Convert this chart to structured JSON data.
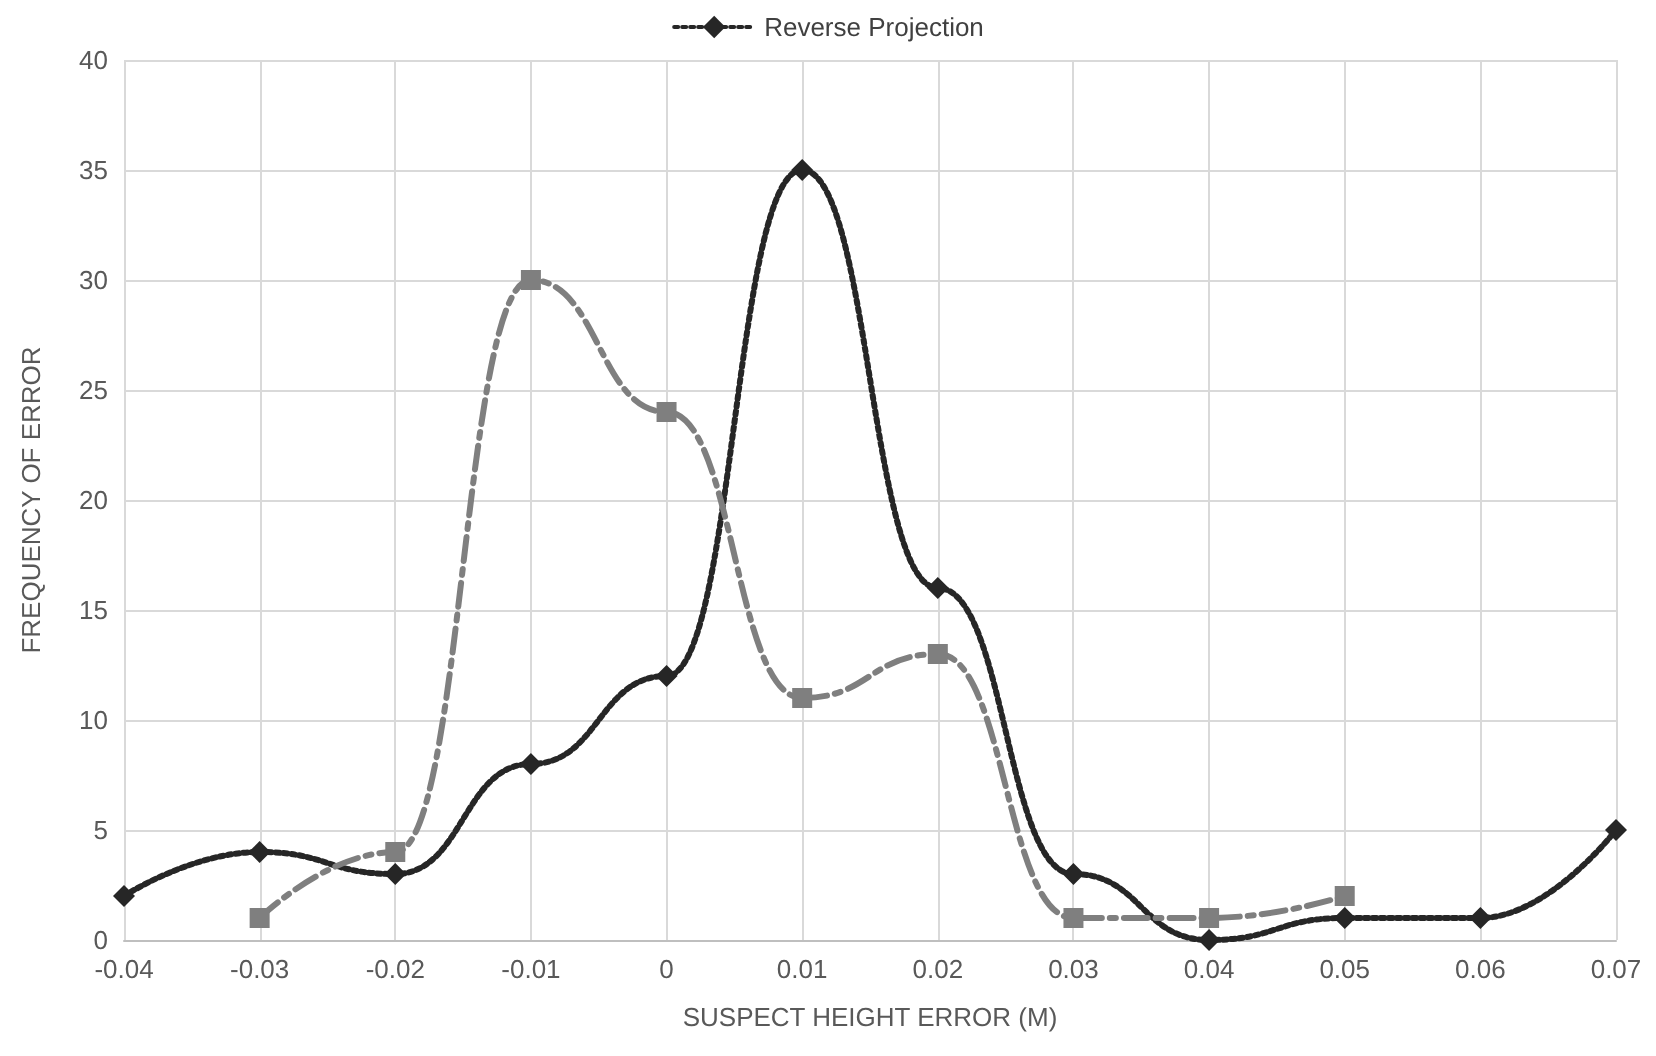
{
  "chart_data": {
    "type": "line",
    "xlabel": "SUSPECT HEIGHT ERROR (M)",
    "ylabel": "FREQUENCY OF ERROR",
    "series": [
      {
        "name": "Reverse Projection",
        "color": "#262626",
        "marker": "diamond",
        "line_style": "dotted",
        "x": [
          -0.04,
          -0.03,
          -0.02,
          -0.01,
          0,
          0.01,
          0.02,
          0.03,
          0.04,
          0.05,
          0.06,
          0.07
        ],
        "values": [
          2,
          4,
          3,
          8,
          12,
          35,
          16,
          3,
          0,
          1,
          1,
          5
        ]
      },
      {
        "color": "#7f7f7f",
        "marker": "square",
        "line_style": "dashed",
        "x": [
          -0.03,
          -0.02,
          -0.01,
          0,
          0.01,
          0.02,
          0.03,
          0.04,
          0.05
        ],
        "values": [
          1,
          4,
          30,
          24,
          11,
          13,
          1,
          1,
          2
        ]
      }
    ],
    "xlim": [
      -0.04,
      0.07
    ],
    "xticks": [
      -0.04,
      -0.03,
      -0.02,
      -0.01,
      0,
      0.01,
      0.02,
      0.03,
      0.04,
      0.05,
      0.06,
      0.07
    ],
    "ylim": [
      0,
      40
    ],
    "yticks": [
      0,
      5,
      10,
      15,
      20,
      25,
      30,
      35,
      40
    ],
    "grid": true,
    "legend": "top"
  }
}
